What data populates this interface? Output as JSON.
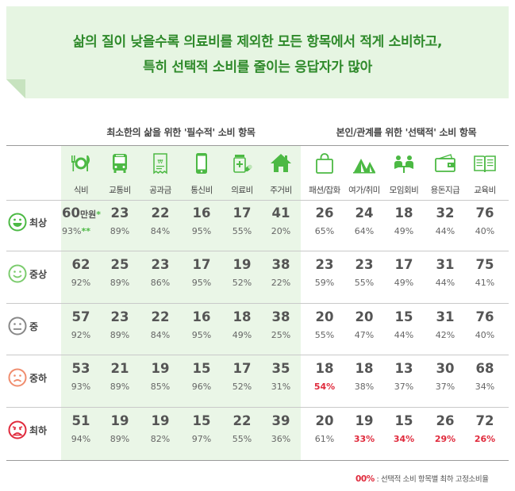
{
  "title": {
    "line1": "삶의 질이 낮을수록 의료비를 제외한 모든 항목에서 적게 소비하고,",
    "line2": "특히 선택적 소비를 줄이는 응답자가 많아"
  },
  "groups": {
    "essential": "최소한의 삶을 위한 '필수적' 소비 항목",
    "optional": "본인/관계를 위한 '선택적' 소비 항목"
  },
  "columns": [
    {
      "label": "식비",
      "icon": "utensils-icon"
    },
    {
      "label": "교통비",
      "icon": "bus-icon"
    },
    {
      "label": "공과금",
      "icon": "receipt-icon"
    },
    {
      "label": "통신비",
      "icon": "smartphone-icon"
    },
    {
      "label": "의료비",
      "icon": "medicine-icon"
    },
    {
      "label": "주거비",
      "icon": "house-icon"
    },
    {
      "label": "패션/잡화",
      "icon": "shopping-bag-icon"
    },
    {
      "label": "여가/취미",
      "icon": "tent-icon"
    },
    {
      "label": "모임회비",
      "icon": "meeting-icon"
    },
    {
      "label": "용돈지급",
      "icon": "wallet-icon"
    },
    {
      "label": "교육비",
      "icon": "book-icon"
    }
  ],
  "rows": [
    {
      "label": "최상",
      "face": "very-happy-face-icon"
    },
    {
      "label": "중상",
      "face": "smile-face-icon"
    },
    {
      "label": "중",
      "face": "neutral-face-icon"
    },
    {
      "label": "중하",
      "face": "frown-face-icon"
    },
    {
      "label": "최하",
      "face": "very-sad-face-icon"
    }
  ],
  "first_cell": {
    "unit": "만원",
    "marker": "*",
    "pct_marker": "**"
  },
  "colors": {
    "accent_green": "#4cb944",
    "title_green": "#2f8a2b",
    "highlight_red": "#e02a3c",
    "title_bg": "#e6f5e2",
    "essential_bg": "#eaf6e7"
  },
  "footnote": {
    "key": "00%",
    "text": " : 선택적 소비 항목별 최하 고정소비율"
  },
  "chart_data": {
    "type": "table",
    "unit": "만원",
    "columns": [
      "식비",
      "교통비",
      "공과금",
      "통신비",
      "의료비",
      "주거비",
      "패션/잡화",
      "여가/취미",
      "모임회비",
      "용돈지급",
      "교육비"
    ],
    "rows": [
      "최상",
      "중상",
      "중",
      "중하",
      "최하"
    ],
    "values": [
      [
        "60",
        "23",
        "22",
        "16",
        "17",
        "41",
        "26",
        "24",
        "18",
        "32",
        "76"
      ],
      [
        "62",
        "25",
        "23",
        "17",
        "19",
        "38",
        "23",
        "23",
        "17",
        "31",
        "75"
      ],
      [
        "57",
        "23",
        "22",
        "16",
        "18",
        "38",
        "20",
        "20",
        "15",
        "31",
        "76"
      ],
      [
        "53",
        "21",
        "19",
        "15",
        "17",
        "35",
        "18",
        "18",
        "13",
        "30",
        "68"
      ],
      [
        "51",
        "19",
        "19",
        "15",
        "22",
        "39",
        "20",
        "19",
        "15",
        "26",
        "72"
      ]
    ],
    "percents": [
      [
        "93%",
        "89%",
        "84%",
        "95%",
        "55%",
        "20%",
        "65%",
        "64%",
        "49%",
        "44%",
        "40%"
      ],
      [
        "92%",
        "89%",
        "86%",
        "95%",
        "52%",
        "22%",
        "59%",
        "55%",
        "49%",
        "44%",
        "41%"
      ],
      [
        "92%",
        "89%",
        "84%",
        "95%",
        "49%",
        "25%",
        "55%",
        "47%",
        "44%",
        "42%",
        "40%"
      ],
      [
        "93%",
        "89%",
        "85%",
        "96%",
        "52%",
        "31%",
        "54%",
        "38%",
        "37%",
        "37%",
        "34%"
      ],
      [
        "94%",
        "89%",
        "82%",
        "97%",
        "55%",
        "36%",
        "61%",
        "33%",
        "34%",
        "29%",
        "26%"
      ]
    ],
    "highlighted": [
      [
        3,
        6
      ],
      [
        4,
        7
      ],
      [
        4,
        8
      ],
      [
        4,
        9
      ],
      [
        4,
        10
      ]
    ]
  }
}
